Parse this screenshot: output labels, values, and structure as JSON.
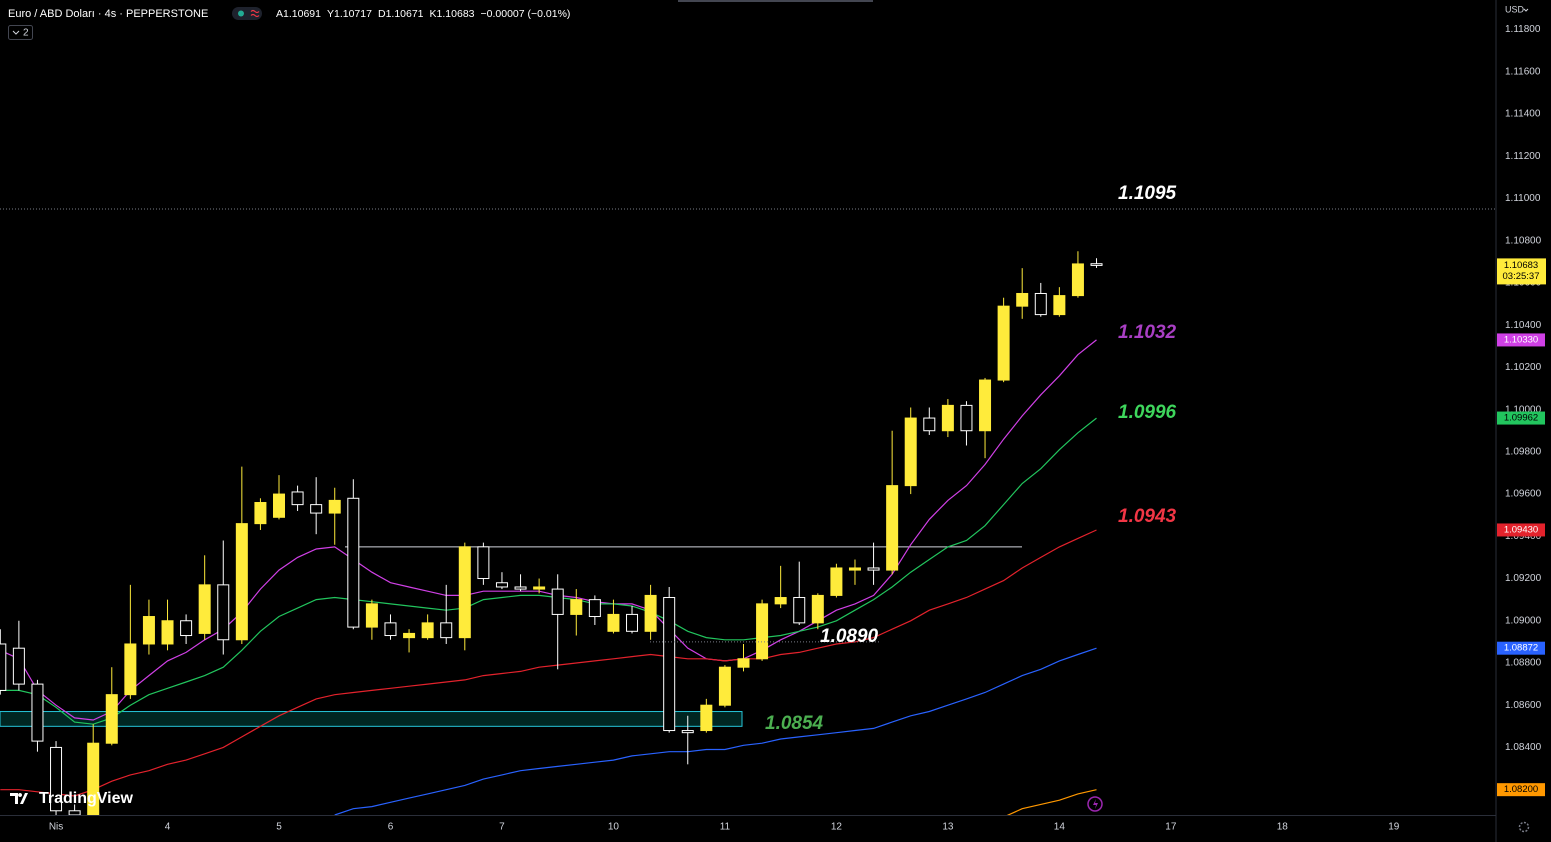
{
  "chart_data": {
    "type": "candlestick",
    "title": "Euro / ABD Doları · 4s · PEPPERSTONE",
    "ohlc_letters": [
      "A",
      "Y",
      "D",
      "K"
    ],
    "change": "−0.00007 (−0.01%)",
    "indicator_count": 2,
    "currency": "USD",
    "countdown": "03:25:37",
    "watermark": "TradingView",
    "up_color": "#ffeb3b",
    "down_color": "#000000",
    "down_border": "#ffffff",
    "grid": false,
    "ylim": [
      1.0808,
      1.1194
    ],
    "yticks": [
      {
        "value": 1.118,
        "label": "1.11800"
      },
      {
        "value": 1.116,
        "label": "1.11600"
      },
      {
        "value": 1.114,
        "label": "1.11400"
      },
      {
        "value": 1.112,
        "label": "1.11200"
      },
      {
        "value": 1.11,
        "label": "1.11000"
      },
      {
        "value": 1.108,
        "label": "1.10800"
      },
      {
        "value": 1.106,
        "label": "1.10600"
      },
      {
        "value": 1.104,
        "label": "1.10400"
      },
      {
        "value": 1.102,
        "label": "1.10200"
      },
      {
        "value": 1.1,
        "label": "1.10000"
      },
      {
        "value": 1.098,
        "label": "1.09800"
      },
      {
        "value": 1.096,
        "label": "1.09600"
      },
      {
        "value": 1.094,
        "label": "1.09400"
      },
      {
        "value": 1.092,
        "label": "1.09200"
      },
      {
        "value": 1.09,
        "label": "1.09000"
      },
      {
        "value": 1.088,
        "label": "1.08800"
      },
      {
        "value": 1.086,
        "label": "1.08600"
      },
      {
        "value": 1.084,
        "label": "1.08400"
      },
      {
        "value": 1.082,
        "label": "1.08200"
      }
    ],
    "categories": [
      null,
      null,
      null,
      "Nis",
      null,
      null,
      null,
      null,
      null,
      "4",
      null,
      null,
      null,
      null,
      null,
      "5",
      null,
      null,
      null,
      null,
      null,
      "6",
      null,
      null,
      null,
      null,
      null,
      "7",
      null,
      null,
      null,
      null,
      null,
      "10",
      null,
      null,
      null,
      null,
      null,
      "11",
      null,
      null,
      null,
      null,
      null,
      "12",
      null,
      null,
      null,
      null,
      null,
      "13",
      null,
      null,
      null,
      null,
      null,
      "14",
      null,
      null,
      null,
      null,
      null,
      "17",
      null,
      null,
      null,
      null,
      null,
      "18",
      null,
      null,
      null,
      null,
      null,
      "19"
    ],
    "open": [
      1.0889,
      1.0887,
      1.087,
      1.084,
      1.081,
      1.0808,
      1.0842,
      1.0865,
      1.0889,
      1.0889,
      1.09,
      1.0894,
      1.0917,
      1.0891,
      1.0946,
      1.0949,
      1.0961,
      1.0955,
      1.0951,
      1.0958,
      1.0897,
      1.0899,
      1.0892,
      1.0892,
      1.0899,
      1.0892,
      1.0935,
      1.0918,
      1.0916,
      1.0915,
      1.0915,
      1.0903,
      1.091,
      1.0895,
      1.0903,
      1.0895,
      1.0911,
      1.0848,
      1.0848,
      1.086,
      1.0878,
      1.0882,
      1.0908,
      1.0911,
      1.0899,
      1.0912,
      1.0924,
      1.0925,
      1.0924,
      1.0964,
      1.0996,
      1.099,
      1.1002,
      1.099,
      1.1014,
      1.1049,
      1.1055,
      1.1045,
      1.1054,
      1.10691,
      null,
      null,
      null,
      null,
      null,
      null,
      null,
      null,
      null,
      null,
      null,
      null,
      null,
      null,
      null,
      null
    ],
    "high": [
      1.0896,
      1.09,
      1.0872,
      1.0843,
      1.0813,
      1.0851,
      1.0878,
      1.0917,
      1.091,
      1.091,
      1.0903,
      1.0931,
      1.0938,
      1.0973,
      1.0958,
      1.0969,
      1.0964,
      1.0968,
      1.0963,
      1.0967,
      1.091,
      1.0903,
      1.0896,
      1.0903,
      1.0917,
      1.0937,
      1.0937,
      1.0923,
      1.0922,
      1.092,
      1.0922,
      1.0915,
      1.0912,
      1.091,
      1.0907,
      1.0917,
      1.0916,
      1.0855,
      1.0863,
      1.0879,
      1.0889,
      1.091,
      1.0926,
      1.0928,
      1.0913,
      1.0927,
      1.0929,
      1.0937,
      1.099,
      1.1001,
      1.1001,
      1.1005,
      1.1004,
      1.1015,
      1.1053,
      1.1067,
      1.106,
      1.1058,
      1.1075,
      1.10717,
      null,
      null,
      null,
      null,
      null,
      null,
      null,
      null,
      null,
      null,
      null,
      null,
      null,
      null,
      null,
      null
    ],
    "low": [
      1.0865,
      1.0867,
      1.0838,
      1.0805,
      1.08,
      1.0805,
      1.0841,
      1.0863,
      1.0884,
      1.0886,
      1.0889,
      1.0891,
      1.0884,
      1.0889,
      1.0943,
      1.0948,
      1.0952,
      1.0941,
      1.0936,
      1.0896,
      1.0891,
      1.0891,
      1.0885,
      1.0891,
      1.0889,
      1.0886,
      1.0917,
      1.0915,
      1.0914,
      1.0913,
      1.0877,
      1.0893,
      1.0898,
      1.0894,
      1.0894,
      1.0891,
      1.0847,
      1.0832,
      1.0847,
      1.0859,
      1.0876,
      1.0881,
      1.0906,
      1.0898,
      1.0896,
      1.0911,
      1.0917,
      1.0917,
      1.0922,
      1.096,
      1.0988,
      1.0987,
      1.0983,
      1.0977,
      1.1013,
      1.1043,
      1.1044,
      1.1044,
      1.1053,
      1.10671,
      null,
      null,
      null,
      null,
      null,
      null,
      null,
      null,
      null,
      null,
      null,
      null,
      null,
      null,
      null,
      null
    ],
    "close": [
      1.0867,
      1.087,
      1.0843,
      1.081,
      1.0808,
      1.0842,
      1.0865,
      1.0889,
      1.0902,
      1.09,
      1.0893,
      1.0917,
      1.0891,
      1.0946,
      1.0956,
      1.096,
      1.0955,
      1.0951,
      1.0957,
      1.0897,
      1.0908,
      1.0893,
      1.0894,
      1.0899,
      1.0892,
      1.0935,
      1.092,
      1.0916,
      1.0915,
      1.0916,
      1.0903,
      1.091,
      1.0902,
      1.0903,
      1.0895,
      1.0912,
      1.0848,
      1.0847,
      1.086,
      1.0878,
      1.0882,
      1.0908,
      1.0911,
      1.0899,
      1.0912,
      1.0925,
      1.0925,
      1.0924,
      1.0964,
      1.0996,
      1.099,
      1.1002,
      1.099,
      1.1014,
      1.1049,
      1.1055,
      1.1045,
      1.1054,
      1.1069,
      1.10683,
      null,
      null,
      null,
      null,
      null,
      null,
      null,
      null,
      null,
      null,
      null,
      null,
      null,
      null,
      null,
      null
    ],
    "indicators": [
      {
        "color": "#d040e6",
        "price_label": "1.10330",
        "label_color": "#ffffff",
        "values": [
          1.0886,
          1.0882,
          1.0867,
          1.086,
          1.0854,
          1.0853,
          1.0857,
          1.0867,
          1.0874,
          1.0881,
          1.0885,
          1.0891,
          1.0896,
          1.0904,
          1.0915,
          1.0924,
          1.093,
          1.0934,
          1.0935,
          1.0929,
          1.0923,
          1.0918,
          1.0916,
          1.0914,
          1.0912,
          1.0912,
          1.0914,
          1.0914,
          1.0914,
          1.0914,
          1.0912,
          1.0911,
          1.0909,
          1.0908,
          1.0908,
          1.0905,
          1.0896,
          1.0887,
          1.0882,
          1.0881,
          1.0882,
          1.0886,
          1.0891,
          1.0895,
          1.09,
          1.0905,
          1.0908,
          1.0912,
          1.0922,
          1.0936,
          1.0948,
          1.0957,
          1.0964,
          1.0974,
          1.0986,
          1.0997,
          1.1007,
          1.1016,
          1.1026,
          1.1033,
          null,
          null,
          null,
          null,
          null,
          null,
          null,
          null,
          null,
          null,
          null,
          null,
          null,
          null,
          null,
          null
        ]
      },
      {
        "color": "#22c55e",
        "price_label": "1.09962",
        "label_color": "#000000",
        "values": [
          1.0867,
          1.0867,
          1.0865,
          1.0859,
          1.0852,
          1.0851,
          1.0854,
          1.086,
          1.0865,
          1.0868,
          1.0871,
          1.0874,
          1.0878,
          1.0886,
          1.0895,
          1.0902,
          1.0906,
          1.091,
          1.0911,
          1.091,
          1.0909,
          1.0908,
          1.0907,
          1.0906,
          1.0905,
          1.0906,
          1.091,
          1.0911,
          1.0912,
          1.0912,
          1.0911,
          1.091,
          1.0908,
          1.0908,
          1.0907,
          1.0904,
          1.09,
          1.0895,
          1.0892,
          1.0891,
          1.0891,
          1.0892,
          1.0893,
          1.0895,
          1.0897,
          1.09,
          1.0905,
          1.091,
          1.0916,
          1.0923,
          1.0929,
          1.0935,
          1.0938,
          1.0945,
          1.0955,
          1.0965,
          1.0972,
          1.0981,
          1.0989,
          1.0996,
          null,
          null,
          null,
          null,
          null,
          null,
          null,
          null,
          null,
          null,
          null,
          null,
          null,
          null,
          null,
          null
        ]
      },
      {
        "color": "#e3222c",
        "price_label": "1.09430",
        "label_color": "#ffffff",
        "values": [
          1.082,
          1.082,
          1.0819,
          1.0818,
          1.0817,
          1.082,
          1.0824,
          1.0827,
          1.0829,
          1.0832,
          1.0834,
          1.0837,
          1.084,
          1.0845,
          1.085,
          1.0855,
          1.0859,
          1.0863,
          1.0865,
          1.0866,
          1.0867,
          1.0868,
          1.0869,
          1.087,
          1.0871,
          1.0872,
          1.0874,
          1.0875,
          1.0876,
          1.0878,
          1.0879,
          1.088,
          1.0881,
          1.0882,
          1.0883,
          1.0884,
          1.0883,
          1.0882,
          1.0882,
          1.0881,
          1.0882,
          1.0882,
          1.0884,
          1.0885,
          1.0887,
          1.0889,
          1.089,
          1.0892,
          1.0896,
          1.09,
          1.0905,
          1.0908,
          1.0911,
          1.0915,
          1.0919,
          1.0925,
          1.093,
          1.0935,
          1.0939,
          1.0943,
          null,
          null,
          null,
          null,
          null,
          null,
          null,
          null,
          null,
          null,
          null,
          null,
          null,
          null,
          null,
          null
        ]
      },
      {
        "color": "#2962ff",
        "price_label": "1.08872",
        "label_color": "#ffffff",
        "values": [
          null,
          null,
          null,
          null,
          null,
          null,
          null,
          null,
          null,
          null,
          null,
          null,
          null,
          null,
          null,
          null,
          null,
          null,
          1.0808,
          1.0811,
          1.0812,
          1.0814,
          1.0816,
          1.0818,
          1.082,
          1.0822,
          1.0825,
          1.0827,
          1.0829,
          1.083,
          1.0831,
          1.0832,
          1.0833,
          1.0834,
          1.0836,
          1.0837,
          1.0838,
          1.0838,
          1.0839,
          1.0839,
          1.0841,
          1.0842,
          1.0844,
          1.0845,
          1.0846,
          1.0847,
          1.0848,
          1.0849,
          1.0852,
          1.0855,
          1.0857,
          1.086,
          1.0863,
          1.0866,
          1.087,
          1.0874,
          1.0877,
          1.0881,
          1.0884,
          1.0887,
          null,
          null,
          null,
          null,
          null,
          null,
          null,
          null,
          null,
          null,
          null,
          null,
          null,
          null,
          null,
          null
        ]
      },
      {
        "color": "#ff9800",
        "price_label": "1.08200",
        "label_color": "#000000",
        "values": [
          null,
          null,
          null,
          null,
          null,
          null,
          null,
          null,
          null,
          null,
          null,
          null,
          null,
          null,
          null,
          null,
          null,
          null,
          null,
          null,
          null,
          null,
          null,
          null,
          null,
          null,
          null,
          null,
          null,
          null,
          null,
          null,
          null,
          null,
          null,
          null,
          null,
          null,
          null,
          null,
          null,
          null,
          null,
          null,
          null,
          null,
          null,
          null,
          null,
          null,
          null,
          null,
          null,
          null,
          1.0807,
          1.0811,
          1.0813,
          1.0815,
          1.0818,
          1.082,
          null,
          null,
          null,
          null,
          null,
          null,
          null,
          null,
          null,
          null,
          null,
          null,
          null,
          null,
          null,
          null
        ]
      }
    ],
    "zone": [
      1.085,
      1.0857
    ],
    "level_line": 1.0935,
    "annotations": [
      {
        "value": 1.1095,
        "label": "1.1095",
        "color": "#ffffff"
      },
      {
        "value": 1.1032,
        "label": "1.1032",
        "color": "#a93fc4"
      },
      {
        "value": 1.0996,
        "label": "1.0996",
        "color": "#3ed65c"
      },
      {
        "value": 1.0943,
        "label": "1.0943",
        "color": "#f23645"
      },
      {
        "value": 1.089,
        "label": "1.0890",
        "color": "#ffffff"
      },
      {
        "value": 1.0854,
        "label": "1.0854",
        "color": "#4caf50"
      }
    ]
  }
}
